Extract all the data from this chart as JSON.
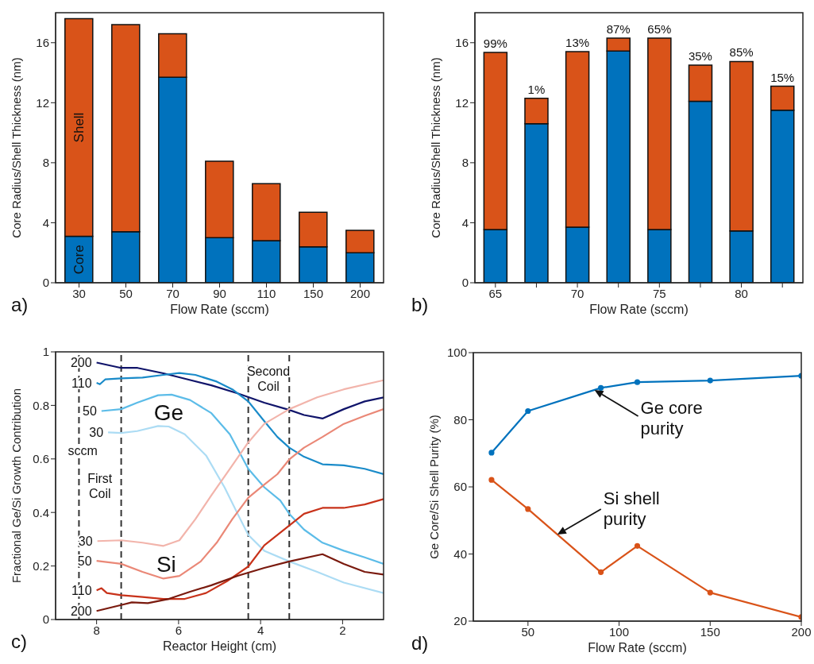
{
  "chart_data": [
    {
      "type": "bar",
      "stacked": true,
      "xlabel": "Flow Rate (sccm)",
      "ylabel": "Core Radius/Shell Thickness (nm)",
      "categories": [
        "30",
        "50",
        "70",
        "90",
        "110",
        "150",
        "200"
      ],
      "ylim": [
        0,
        18
      ],
      "yticks": [
        0,
        4,
        8,
        12,
        16
      ],
      "series": [
        {
          "name": "Core",
          "color": "#0072bd",
          "values": [
            3.1,
            3.4,
            13.7,
            3.0,
            2.8,
            2.4,
            2.0
          ]
        },
        {
          "name": "Shell",
          "color": "#d95319",
          "values": [
            14.5,
            13.8,
            2.9,
            5.1,
            3.8,
            2.3,
            1.5
          ]
        }
      ],
      "annotations": [
        "a)"
      ]
    },
    {
      "type": "bar",
      "stacked": true,
      "xlabel": "Flow Rate (sccm)",
      "ylabel": "Core Radius/Shell Thickness (nm)",
      "categories": [
        "65",
        null,
        "70",
        null,
        "75",
        null,
        "80",
        null
      ],
      "ylim": [
        0,
        18
      ],
      "yticks": [
        0,
        4,
        8,
        12,
        16
      ],
      "series": [
        {
          "color": "#0072bd",
          "values": [
            3.55,
            10.6,
            3.7,
            15.45,
            3.55,
            12.1,
            3.45,
            11.5
          ]
        },
        {
          "color": "#d95319",
          "values": [
            11.8,
            1.7,
            11.7,
            0.85,
            12.75,
            2.4,
            11.3,
            1.6
          ]
        }
      ],
      "annotations": [
        "99%",
        "1%",
        "13%",
        "87%",
        "65%",
        "35%",
        "85%",
        "15%",
        "b)"
      ]
    },
    {
      "type": "line",
      "xlabel": "Reactor Height (cm)",
      "ylabel": "Fractional Ge/Si Growth Contribution",
      "xlim": [
        9,
        1
      ],
      "xticks": [
        8,
        6,
        4,
        2
      ],
      "ylim": [
        0,
        1
      ],
      "yticks": [
        0,
        0.2,
        0.4,
        0.6,
        0.8,
        1
      ],
      "series": [
        {
          "name": "200",
          "color": "#10146a",
          "x": [
            8,
            7.4,
            7.0,
            6.37,
            5.85,
            5.2,
            4.56,
            3.91,
            3.3,
            2.94,
            2.49,
            1.97,
            1.46,
            1.0
          ],
          "values": [
            0.96,
            0.94,
            0.94,
            0.92,
            0.9,
            0.875,
            0.845,
            0.81,
            0.783,
            0.764,
            0.751,
            0.786,
            0.815,
            0.83
          ]
        },
        {
          "name": "110",
          "color": "#1a8bc9",
          "x": [
            8,
            7.92,
            7.79,
            7.4,
            6.88,
            6.37,
            5.98,
            5.59,
            5.07,
            4.69,
            4.3,
            3.91,
            3.59,
            3.3,
            2.94,
            2.49,
            1.97,
            1.46,
            1.0
          ],
          "values": [
            0.884,
            0.879,
            0.897,
            0.901,
            0.904,
            0.914,
            0.921,
            0.914,
            0.889,
            0.86,
            0.815,
            0.741,
            0.682,
            0.642,
            0.608,
            0.58,
            0.576,
            0.563,
            0.543
          ]
        },
        {
          "name": "50",
          "color": "#5cbce8",
          "x": [
            7.88,
            7.4,
            7.01,
            6.5,
            6.17,
            5.72,
            5.2,
            4.75,
            4.3,
            3.91,
            3.52,
            3.3,
            2.94,
            2.49,
            1.97,
            1.46,
            1.0
          ],
          "values": [
            0.779,
            0.786,
            0.81,
            0.838,
            0.84,
            0.82,
            0.771,
            0.692,
            0.563,
            0.494,
            0.445,
            0.395,
            0.336,
            0.287,
            0.257,
            0.232,
            0.208
          ]
        },
        {
          "name": "30",
          "color": "#acdcf4",
          "x": [
            7.72,
            7.4,
            7.01,
            6.5,
            6.24,
            5.85,
            5.33,
            4.88,
            4.56,
            4.3,
            3.91,
            3.3,
            2.62,
            1.97,
            1.0
          ],
          "values": [
            0.699,
            0.697,
            0.704,
            0.723,
            0.721,
            0.692,
            0.613,
            0.494,
            0.395,
            0.316,
            0.257,
            0.217,
            0.178,
            0.138,
            0.099
          ]
        },
        {
          "name": "30",
          "color": "#f2b4ab",
          "x": [
            7.98,
            7.4,
            6.88,
            6.37,
            5.98,
            5.59,
            5.2,
            4.75,
            4.3,
            3.91,
            3.3,
            2.62,
            1.97,
            1.0
          ],
          "values": [
            0.293,
            0.296,
            0.287,
            0.275,
            0.296,
            0.375,
            0.464,
            0.563,
            0.662,
            0.731,
            0.786,
            0.83,
            0.86,
            0.894
          ]
        },
        {
          "name": "50",
          "color": "#ea8877",
          "x": [
            8,
            7.4,
            6.88,
            6.37,
            5.98,
            5.46,
            5.07,
            4.69,
            4.3,
            3.91,
            3.59,
            3.3,
            2.94,
            2.49,
            1.97,
            1.46,
            1.0
          ],
          "values": [
            0.219,
            0.208,
            0.178,
            0.153,
            0.163,
            0.217,
            0.287,
            0.375,
            0.455,
            0.504,
            0.543,
            0.598,
            0.642,
            0.682,
            0.731,
            0.761,
            0.786
          ]
        },
        {
          "name": "110",
          "color": "#c8321a",
          "x": [
            8,
            7.88,
            7.75,
            7.4,
            6.88,
            6.37,
            5.85,
            5.33,
            4.82,
            4.3,
            3.91,
            3.3,
            2.94,
            2.49,
            1.97,
            1.46,
            1.0
          ],
          "values": [
            0.109,
            0.117,
            0.099,
            0.091,
            0.084,
            0.077,
            0.077,
            0.099,
            0.143,
            0.198,
            0.277,
            0.351,
            0.395,
            0.417,
            0.417,
            0.43,
            0.45
          ]
        },
        {
          "name": "200",
          "color": "#7a1a0e",
          "x": [
            8,
            7.4,
            7.14,
            6.75,
            6.24,
            5.72,
            5.2,
            4.56,
            3.91,
            3.3,
            2.49,
            1.97,
            1.46,
            1.0
          ],
          "values": [
            0.032,
            0.054,
            0.064,
            0.061,
            0.077,
            0.104,
            0.128,
            0.163,
            0.193,
            0.217,
            0.244,
            0.208,
            0.178,
            0.168
          ]
        }
      ],
      "ref_lines": [
        {
          "axis": "x",
          "value": 8.43,
          "line_style": "dashed"
        },
        {
          "axis": "x",
          "value": 7.4,
          "line_style": "dashed"
        },
        {
          "axis": "x",
          "value": 4.3,
          "line_style": "dashed"
        },
        {
          "axis": "x",
          "value": 3.3,
          "line_style": "dashed"
        }
      ],
      "annotations": [
        "Ge",
        "Si",
        "First\nCoil",
        "Second\nCoil",
        "sccm",
        "c)"
      ]
    },
    {
      "type": "line",
      "marker": "circle",
      "xlabel": "Flow Rate (sccm)",
      "ylabel": "Ge Core/Si Shell Purity (%)",
      "x": [
        30,
        50,
        90,
        110,
        150,
        200
      ],
      "xlim": [
        20,
        200
      ],
      "xticks": [
        50,
        100,
        150,
        200
      ],
      "ylim": [
        20,
        100
      ],
      "yticks": [
        20,
        40,
        60,
        80,
        100
      ],
      "series": [
        {
          "color": "#0072bd",
          "values": [
            70.2,
            82.6,
            89.5,
            91.2,
            91.7,
            93.1
          ]
        },
        {
          "color": "#d95319",
          "values": [
            62.1,
            53.4,
            34.6,
            42.4,
            28.5,
            21.2
          ]
        }
      ],
      "annotations": [
        {
          "text": "Ge core\npurity",
          "x": 86.5,
          "y": 88.9
        },
        {
          "text": "Si shell\npurity",
          "x": 66.1,
          "y": 45.8
        },
        "d)"
      ]
    }
  ]
}
